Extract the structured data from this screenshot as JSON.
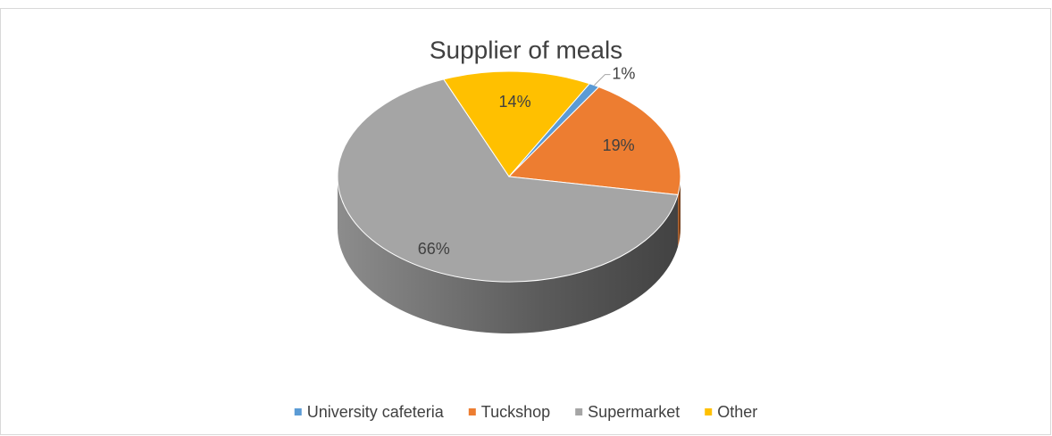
{
  "chart_data": {
    "type": "pie",
    "title": "Supplier of meals",
    "categories": [
      "University cafeteria",
      "Tuckshop",
      "Supermarket",
      "Other"
    ],
    "values": [
      1,
      19,
      66,
      14
    ],
    "value_labels": [
      "1%",
      "19%",
      "66%",
      "14%"
    ],
    "colors": [
      "#5b9bd5",
      "#ed7d31",
      "#a5a5a5",
      "#ffc000"
    ],
    "legend": "bottom"
  }
}
